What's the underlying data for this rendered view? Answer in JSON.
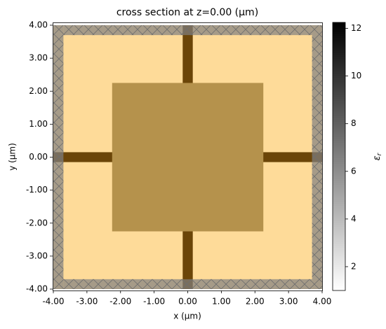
{
  "chart_data": {
    "type": "structure-map",
    "title": "cross section at z=0.00 (μm)",
    "x_label": "x (μm)",
    "y_label": "y (μm)",
    "xlim": [
      -4,
      4
    ],
    "ylim": [
      -4,
      4
    ],
    "xticks": [
      {
        "value": -4,
        "label": "-4.00"
      },
      {
        "value": -3,
        "label": "-3.00"
      },
      {
        "value": -2,
        "label": "-2.00"
      },
      {
        "value": -1,
        "label": "-1.00"
      },
      {
        "value": 0,
        "label": "0.00"
      },
      {
        "value": 1,
        "label": "1.00"
      },
      {
        "value": 2,
        "label": "2.00"
      },
      {
        "value": 3,
        "label": "3.00"
      },
      {
        "value": 4,
        "label": "4.00"
      }
    ],
    "yticks": [
      {
        "value": -4,
        "label": "-4.00"
      },
      {
        "value": -3,
        "label": "-3.00"
      },
      {
        "value": -2,
        "label": "-2.00"
      },
      {
        "value": -1,
        "label": "-1.00"
      },
      {
        "value": 0,
        "label": "0.00"
      },
      {
        "value": 1,
        "label": "1.00"
      },
      {
        "value": 2,
        "label": "2.00"
      },
      {
        "value": 3,
        "label": "3.00"
      },
      {
        "value": 4,
        "label": "4.00"
      }
    ],
    "structures": [
      {
        "x": [
          -4,
          4
        ],
        "y": [
          -4,
          4
        ],
        "color": "#fedb99"
      },
      {
        "x": [
          -0.15,
          0.15
        ],
        "y": [
          -4,
          4
        ],
        "color": "#6b4508"
      },
      {
        "x": [
          -4,
          4
        ],
        "y": [
          -0.15,
          0.15
        ],
        "color": "#6b4508"
      },
      {
        "x": [
          -2.25,
          2.25
        ],
        "y": [
          -2.25,
          2.25
        ],
        "color": "#b5924c"
      }
    ],
    "pml": [
      {
        "x": [
          -4,
          -3.7
        ],
        "y": [
          -4,
          4
        ]
      },
      {
        "x": [
          3.7,
          4
        ],
        "y": [
          -4,
          4
        ]
      },
      {
        "x": [
          -3.7,
          3.7
        ],
        "y": [
          -4,
          -3.7
        ]
      },
      {
        "x": [
          -3.7,
          3.7
        ],
        "y": [
          3.7,
          4
        ]
      }
    ],
    "pml_color": "#808080",
    "colorbar": {
      "clim": [
        1,
        12.25
      ],
      "ticks": [
        2,
        4,
        6,
        8,
        10,
        12
      ],
      "colors": [
        "#ffffff",
        "#000000"
      ],
      "label_symbol": "ε",
      "label_subscript": "r"
    }
  }
}
